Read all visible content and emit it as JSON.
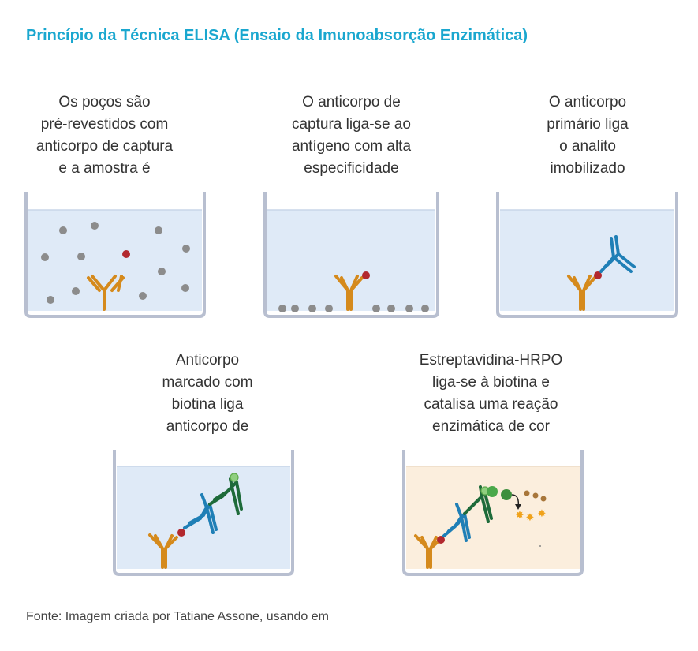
{
  "title": "Princípio da Técnica ELISA (Ensaio da Imunoabsorção Enzimática)",
  "steps": [
    {
      "caption_lines": [
        "Os poços são",
        "pré-revestidos com",
        "anticorpo de captura",
        "e a amostra é"
      ]
    },
    {
      "caption_lines": [
        "O anticorpo de",
        "captura liga-se ao",
        "antígeno com alta",
        "especificidade"
      ]
    },
    {
      "caption_lines": [
        "O anticorpo",
        "primário liga",
        "o analito",
        "imobilizado"
      ]
    },
    {
      "caption_lines": [
        "Anticorpo",
        "marcado com",
        "biotina liga",
        "anticorpo de"
      ]
    },
    {
      "caption_lines": [
        "Estreptavidina-HRPO",
        "liga-se à biotina e",
        "catalisa uma reação",
        "enzimática de cor"
      ]
    }
  ],
  "source": "Fonte: Imagem criada por Tatiane Assone, usando em",
  "colors": {
    "title": "#1aa7cf",
    "well_border": "#b8bfd0",
    "liquid": "#dfeaf7",
    "liquid_colored": "#fbeedd",
    "capture_antibody": "#d58a1c",
    "antigen": "#b2282e",
    "primary_antibody": "#1f7fb6",
    "biotin_antibody": "#1e6b3a",
    "streptavidin": "#4aa84a",
    "other_protein": "#8c8c8c",
    "substrate": "#a8763a",
    "product": "#f0a21a"
  }
}
